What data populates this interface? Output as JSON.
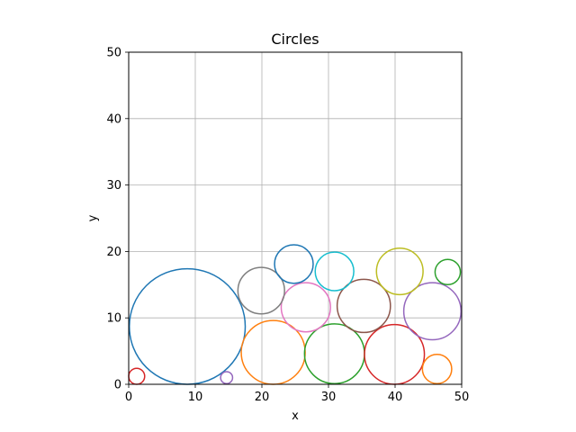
{
  "chart_data": {
    "type": "scatter",
    "title": "Circles",
    "xlabel": "x",
    "ylabel": "y",
    "xlim": [
      0,
      50
    ],
    "ylim": [
      0,
      50
    ],
    "xticks": [
      0,
      10,
      20,
      30,
      40,
      50
    ],
    "yticks": [
      0,
      10,
      20,
      30,
      40,
      50
    ],
    "grid": true,
    "circles": [
      {
        "x": 8.8,
        "y": 8.7,
        "r": 8.7,
        "color": "#1f77b4"
      },
      {
        "x": 21.7,
        "y": 4.8,
        "r": 4.8,
        "color": "#ff7f0e"
      },
      {
        "x": 30.9,
        "y": 4.6,
        "r": 4.5,
        "color": "#2ca02c"
      },
      {
        "x": 39.9,
        "y": 4.5,
        "r": 4.5,
        "color": "#d62728"
      },
      {
        "x": 45.6,
        "y": 11.0,
        "r": 4.3,
        "color": "#9467bd"
      },
      {
        "x": 35.3,
        "y": 11.8,
        "r": 4.0,
        "color": "#8c564b"
      },
      {
        "x": 26.6,
        "y": 11.6,
        "r": 3.7,
        "color": "#e377c2"
      },
      {
        "x": 19.9,
        "y": 14.1,
        "r": 3.5,
        "color": "#7f7f7f"
      },
      {
        "x": 40.7,
        "y": 17.0,
        "r": 3.5,
        "color": "#bcbd22"
      },
      {
        "x": 30.9,
        "y": 17.0,
        "r": 2.9,
        "color": "#17becf"
      },
      {
        "x": 24.8,
        "y": 18.1,
        "r": 2.9,
        "color": "#1f77b4"
      },
      {
        "x": 46.3,
        "y": 2.3,
        "r": 2.2,
        "color": "#ff7f0e"
      },
      {
        "x": 47.9,
        "y": 16.9,
        "r": 1.9,
        "color": "#2ca02c"
      },
      {
        "x": 1.2,
        "y": 1.2,
        "r": 1.2,
        "color": "#d62728"
      },
      {
        "x": 14.7,
        "y": 1.0,
        "r": 0.9,
        "color": "#9467bd"
      }
    ]
  }
}
